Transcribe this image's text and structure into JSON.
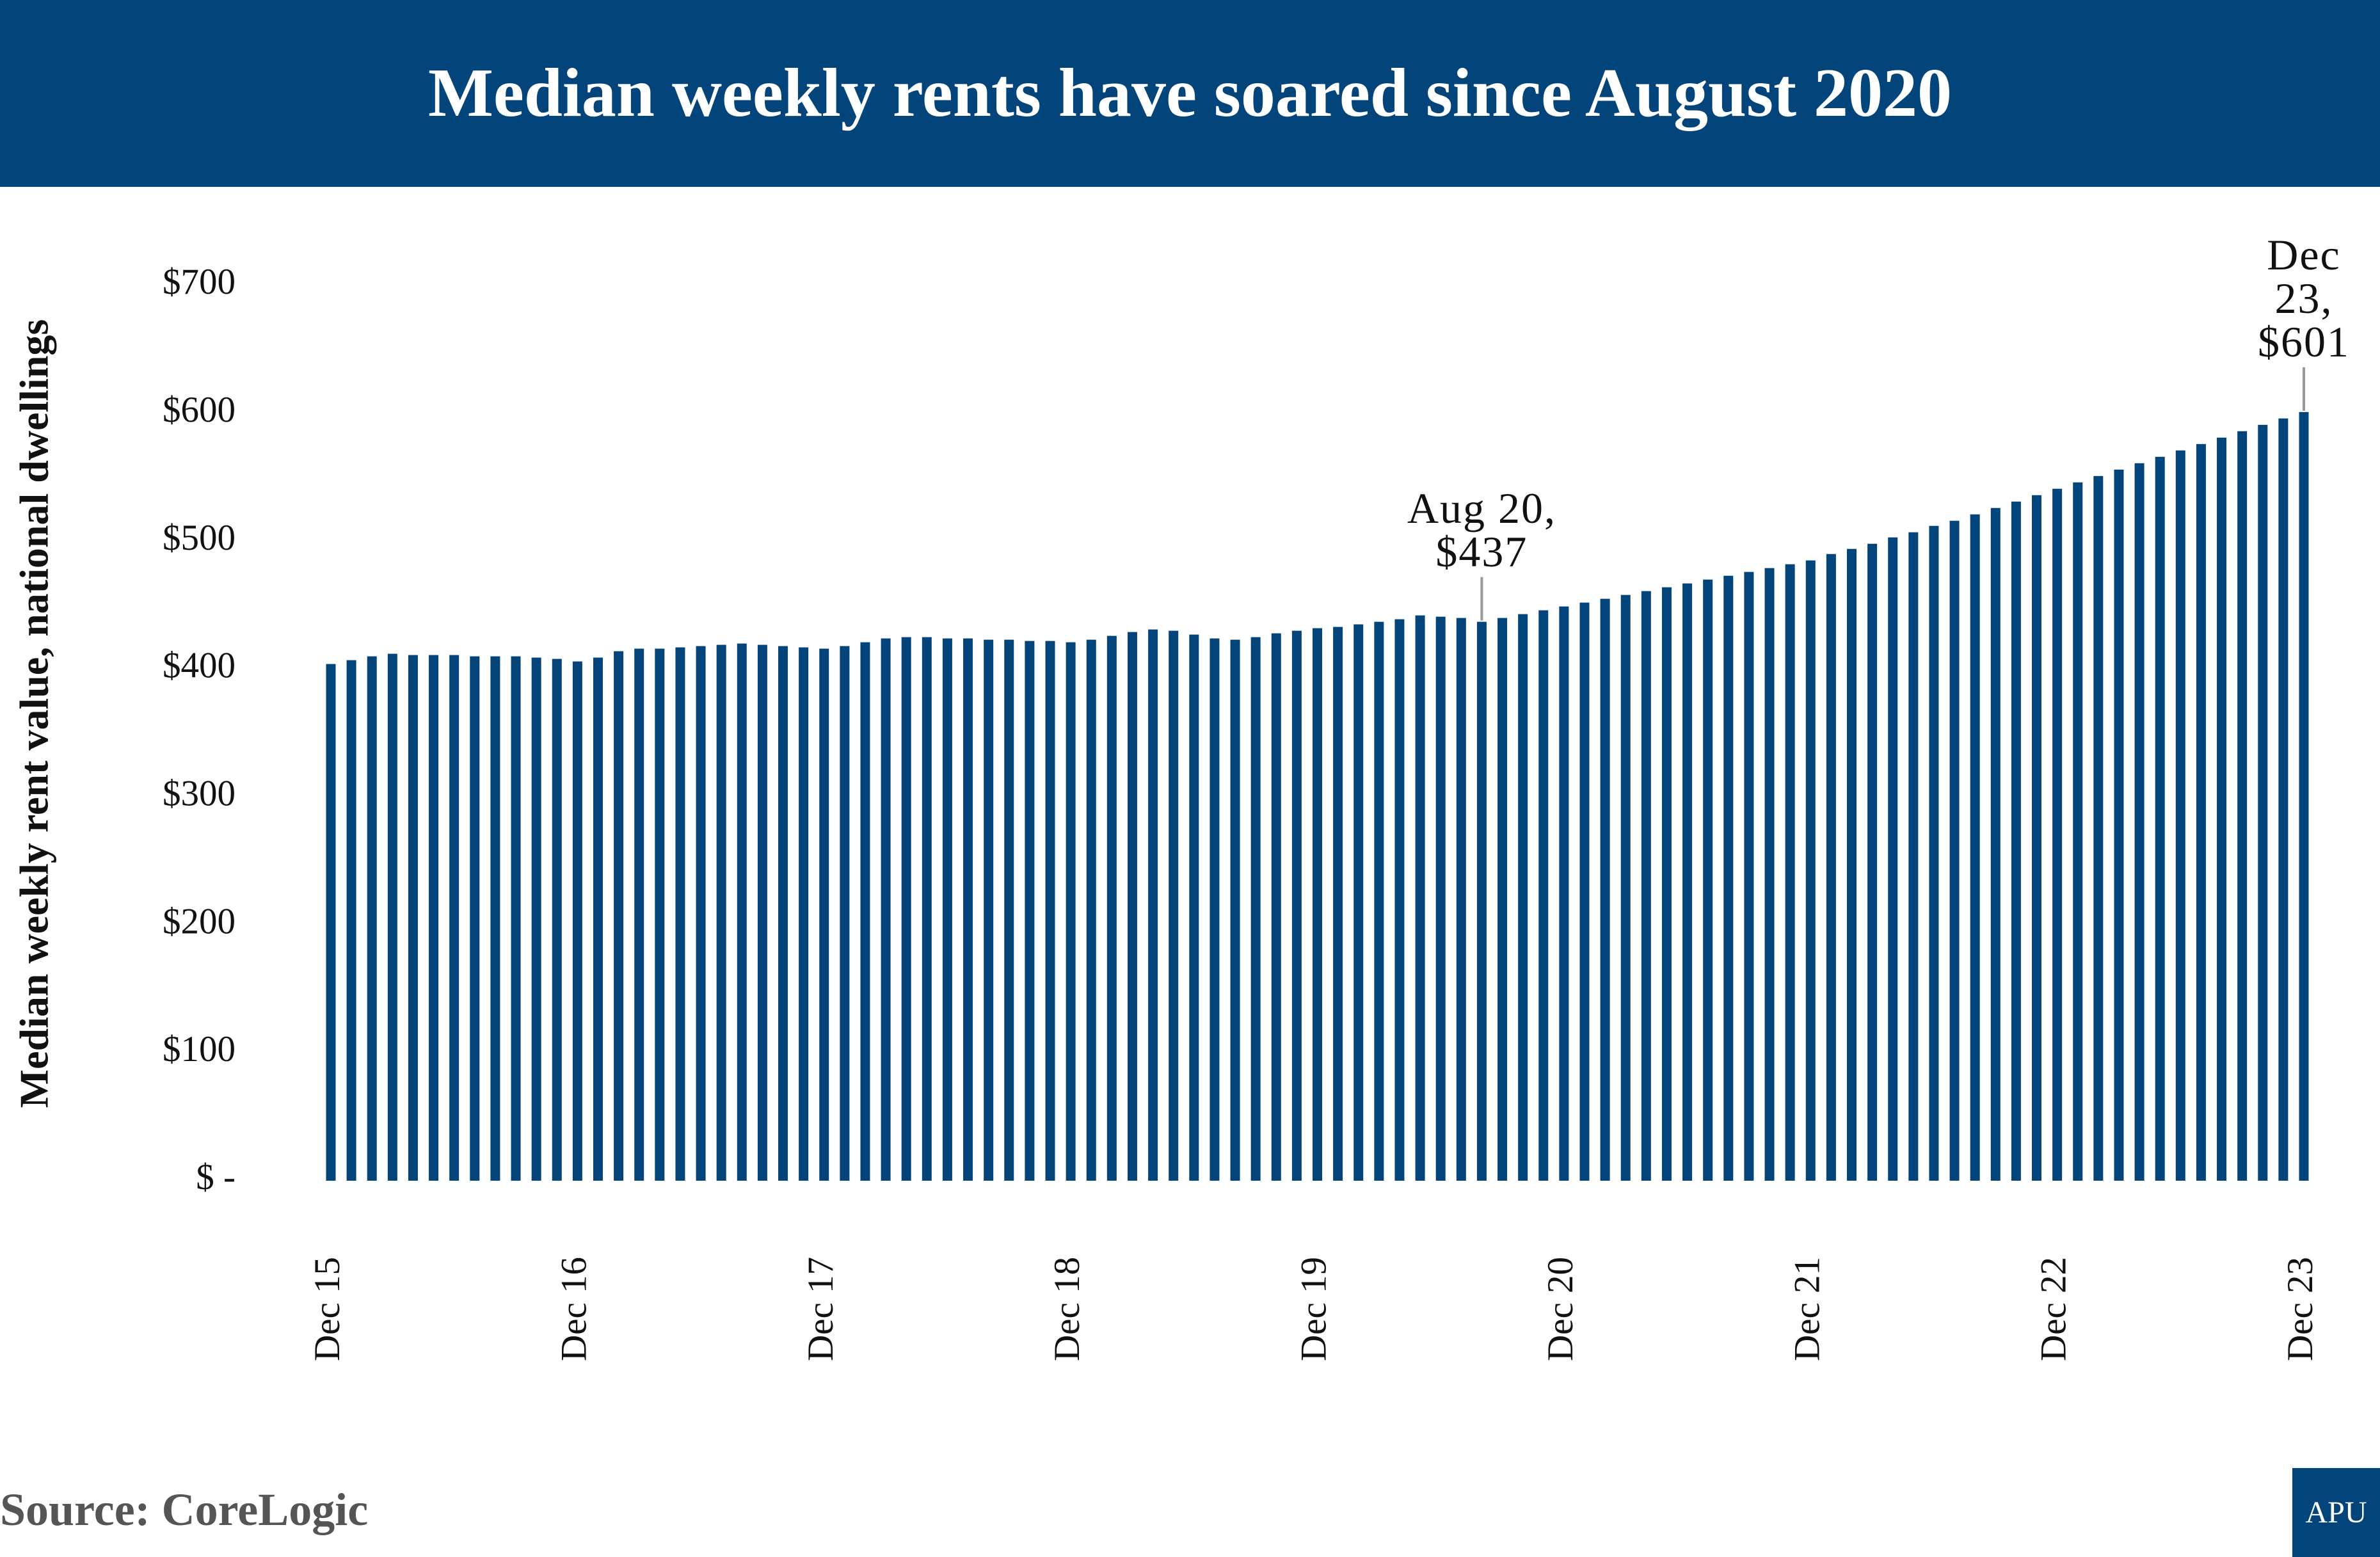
{
  "chart_data": {
    "type": "bar",
    "title": "Median weekly rents have soared since August 2020",
    "y_label": "Median weekly rent value, national dwellings",
    "source": "Source: CoreLogic",
    "logo": "APU",
    "categories": [
      "Dec 15",
      null,
      null,
      null,
      null,
      null,
      null,
      null,
      null,
      null,
      null,
      null,
      "Dec 16",
      null,
      null,
      null,
      null,
      null,
      null,
      null,
      null,
      null,
      null,
      null,
      "Dec 17",
      null,
      null,
      null,
      null,
      null,
      null,
      null,
      null,
      null,
      null,
      null,
      "Dec 18",
      null,
      null,
      null,
      null,
      null,
      null,
      null,
      null,
      null,
      null,
      null,
      "Dec 19",
      null,
      null,
      null,
      null,
      null,
      null,
      null,
      null,
      null,
      null,
      null,
      "Dec 20",
      null,
      null,
      null,
      null,
      null,
      null,
      null,
      null,
      null,
      null,
      null,
      "Dec 21",
      null,
      null,
      null,
      null,
      null,
      null,
      null,
      null,
      null,
      null,
      null,
      "Dec 22",
      null,
      null,
      null,
      null,
      null,
      null,
      null,
      null,
      null,
      null,
      null,
      "Dec 23"
    ],
    "values": [
      404,
      407,
      410,
      412,
      411,
      411,
      411,
      410,
      410,
      410,
      409,
      408,
      406,
      409,
      414,
      416,
      416,
      417,
      418,
      419,
      420,
      419,
      418,
      417,
      416,
      418,
      421,
      424,
      425,
      425,
      424,
      424,
      423,
      423,
      422,
      422,
      421,
      423,
      426,
      429,
      431,
      430,
      427,
      424,
      423,
      425,
      428,
      430,
      432,
      433,
      435,
      437,
      439,
      442,
      441,
      440,
      437,
      440,
      443,
      446,
      449,
      452,
      455,
      458,
      461,
      464,
      467,
      470,
      473,
      476,
      479,
      482,
      485,
      490,
      494,
      498,
      503,
      507,
      512,
      516,
      521,
      526,
      531,
      536,
      541,
      546,
      551,
      556,
      561,
      566,
      571,
      576,
      581,
      586,
      591,
      596,
      601
    ],
    "value_labels": [
      null,
      null,
      null,
      null,
      null,
      null,
      null,
      null,
      null,
      null,
      null,
      null,
      null,
      null,
      null,
      null,
      null,
      null,
      null,
      null,
      null,
      null,
      null,
      null,
      null,
      null,
      null,
      null,
      null,
      null,
      null,
      null,
      null,
      null,
      null,
      null,
      null,
      null,
      null,
      null,
      null,
      null,
      null,
      null,
      null,
      null,
      null,
      null,
      null,
      null,
      null,
      null,
      null,
      null,
      null,
      null,
      "Aug 20,\n$437",
      null,
      null,
      null,
      null,
      null,
      null,
      null,
      null,
      null,
      null,
      null,
      null,
      null,
      null,
      null,
      null,
      null,
      null,
      null,
      null,
      null,
      null,
      null,
      null,
      null,
      null,
      null,
      null,
      null,
      null,
      null,
      null,
      null,
      null,
      null,
      null,
      null,
      null,
      null,
      "Dec 23,\n$601"
    ],
    "color": "#03457a",
    "ylim": [
      0,
      700
    ],
    "yticks": [
      {
        "value": 0,
        "label": "$ -"
      },
      {
        "value": 100,
        "label": "$100"
      },
      {
        "value": 200,
        "label": "$200"
      },
      {
        "value": 300,
        "label": "$300"
      },
      {
        "value": 400,
        "label": "$400"
      },
      {
        "value": 500,
        "label": "$500"
      },
      {
        "value": 600,
        "label": "$600"
      },
      {
        "value": 700,
        "label": "$700"
      }
    ],
    "grid": false
  }
}
